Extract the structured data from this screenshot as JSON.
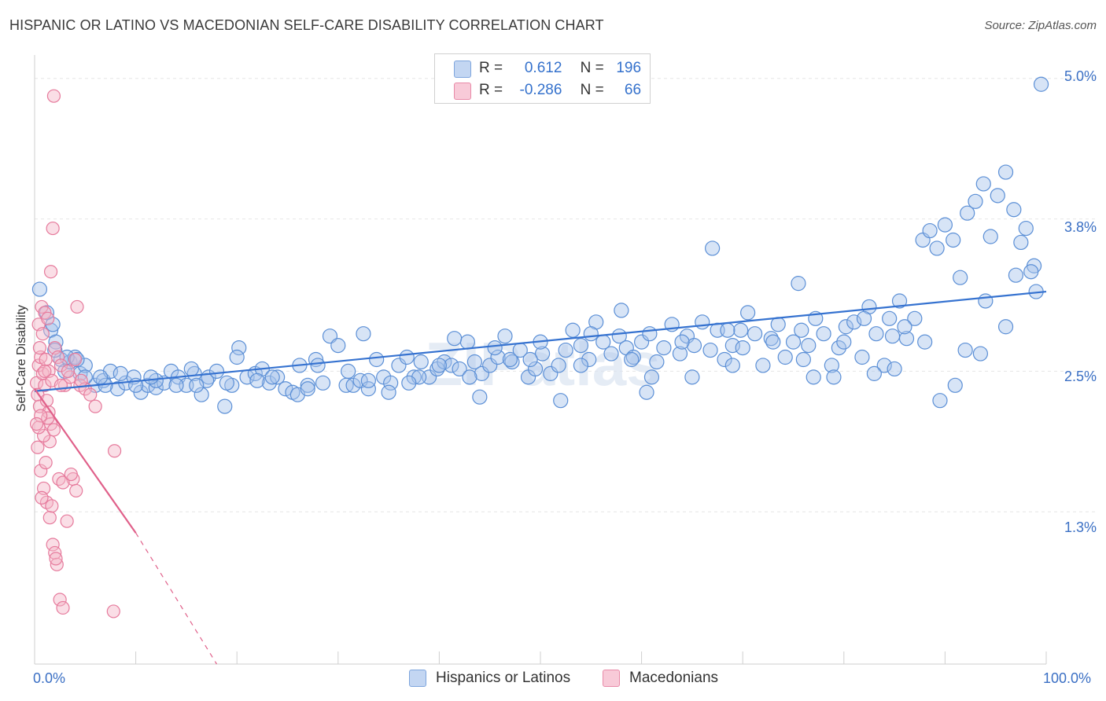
{
  "title": "HISPANIC OR LATINO VS MACEDONIAN SELF-CARE DISABILITY CORRELATION CHART",
  "source": "Source: ZipAtlas.com",
  "watermark": "ZIPatlas",
  "legend": {
    "r_label": "R =",
    "n_label": "N =",
    "rows": [
      {
        "r": "0.612",
        "n": "196",
        "color": "#a7c4ec"
      },
      {
        "r": "-0.286",
        "n": "66",
        "color": "#f4b6c8"
      }
    ]
  },
  "bottom_legend": {
    "items": [
      {
        "label": "Hispanics or Latinos",
        "color": "#a7c4ec"
      },
      {
        "label": "Macedonians",
        "color": "#f4b6c8"
      }
    ]
  },
  "colors": {
    "blue_fill": "#a7c4ec",
    "blue_stroke": "#5b8fd6",
    "blue_line": "#3572d0",
    "pink_fill": "#f4b6c8",
    "pink_stroke": "#e67a9c",
    "pink_line": "#e0608a",
    "axis_text": "#3a6fc4",
    "grid": "#e6e6e6"
  },
  "chart_data": {
    "type": "scatter",
    "title": "HISPANIC OR LATINO VS MACEDONIAN SELF-CARE DISABILITY CORRELATION CHART",
    "xlabel": "",
    "ylabel": "Self-Care Disability",
    "x_unit": "%",
    "xlim": [
      0,
      100
    ],
    "ylim": [
      0.0,
      5.2
    ],
    "x_tick_labels": [
      "0.0%",
      "100.0%"
    ],
    "y_ticks": [
      1.3,
      2.5,
      3.8,
      5.0
    ],
    "y_tick_labels": [
      "1.3%",
      "2.5%",
      "3.8%",
      "5.0%"
    ],
    "grid": true,
    "legend_position": "top-center",
    "series": [
      {
        "name": "Hispanics or Latinos",
        "r": 0.612,
        "n": 196,
        "trend": {
          "x": [
            0,
            100
          ],
          "y": [
            2.33,
            3.18
          ]
        },
        "points": [
          [
            0.5,
            3.2
          ],
          [
            1.2,
            3.0
          ],
          [
            1.6,
            2.85
          ],
          [
            2.1,
            2.75
          ],
          [
            2.6,
            2.6
          ],
          [
            3.0,
            2.5
          ],
          [
            3.5,
            2.58
          ],
          [
            4.0,
            2.62
          ],
          [
            4.5,
            2.48
          ],
          [
            5.0,
            2.55
          ],
          [
            6.0,
            2.38
          ],
          [
            6.8,
            2.42
          ],
          [
            7.5,
            2.5
          ],
          [
            8.2,
            2.35
          ],
          [
            9.0,
            2.4
          ],
          [
            9.8,
            2.45
          ],
          [
            10.5,
            2.32
          ],
          [
            11.2,
            2.38
          ],
          [
            12.0,
            2.36
          ],
          [
            12.8,
            2.4
          ],
          [
            13.5,
            2.5
          ],
          [
            14.2,
            2.45
          ],
          [
            15.0,
            2.38
          ],
          [
            15.8,
            2.48
          ],
          [
            16.5,
            2.3
          ],
          [
            17.2,
            2.45
          ],
          [
            18.0,
            2.5
          ],
          [
            18.8,
            2.2
          ],
          [
            19.5,
            2.38
          ],
          [
            20.2,
            2.7
          ],
          [
            21.0,
            2.45
          ],
          [
            21.8,
            2.48
          ],
          [
            22.5,
            2.52
          ],
          [
            23.2,
            2.4
          ],
          [
            24.0,
            2.45
          ],
          [
            24.8,
            2.35
          ],
          [
            25.5,
            2.32
          ],
          [
            26.2,
            2.55
          ],
          [
            27.0,
            2.38
          ],
          [
            27.8,
            2.6
          ],
          [
            28.5,
            2.4
          ],
          [
            29.2,
            2.8
          ],
          [
            30.0,
            2.72
          ],
          [
            30.8,
            2.38
          ],
          [
            31.5,
            2.38
          ],
          [
            32.2,
            2.42
          ],
          [
            33.0,
            2.35
          ],
          [
            33.8,
            2.6
          ],
          [
            34.5,
            2.45
          ],
          [
            35.2,
            2.4
          ],
          [
            36.0,
            2.55
          ],
          [
            36.8,
            2.62
          ],
          [
            37.5,
            2.45
          ],
          [
            38.2,
            2.58
          ],
          [
            39.0,
            2.45
          ],
          [
            39.8,
            2.52
          ],
          [
            40.5,
            2.58
          ],
          [
            41.2,
            2.55
          ],
          [
            42.0,
            2.52
          ],
          [
            42.8,
            2.75
          ],
          [
            43.5,
            2.58
          ],
          [
            44.2,
            2.48
          ],
          [
            45.0,
            2.55
          ],
          [
            45.8,
            2.62
          ],
          [
            46.5,
            2.8
          ],
          [
            47.2,
            2.58
          ],
          [
            48.0,
            2.68
          ],
          [
            48.8,
            2.45
          ],
          [
            49.5,
            2.52
          ],
          [
            50.2,
            2.65
          ],
          [
            51.0,
            2.48
          ],
          [
            51.8,
            2.55
          ],
          [
            52.5,
            2.68
          ],
          [
            53.2,
            2.85
          ],
          [
            54.0,
            2.72
          ],
          [
            54.8,
            2.6
          ],
          [
            55.5,
            2.92
          ],
          [
            56.2,
            2.75
          ],
          [
            57.0,
            2.65
          ],
          [
            57.8,
            2.8
          ],
          [
            58.5,
            2.7
          ],
          [
            59.2,
            2.62
          ],
          [
            60.0,
            2.75
          ],
          [
            60.8,
            2.82
          ],
          [
            61.5,
            2.58
          ],
          [
            62.2,
            2.7
          ],
          [
            63.0,
            2.9
          ],
          [
            63.8,
            2.65
          ],
          [
            64.5,
            2.8
          ],
          [
            65.2,
            2.72
          ],
          [
            66.0,
            2.92
          ],
          [
            66.8,
            2.68
          ],
          [
            67.5,
            2.85
          ],
          [
            68.2,
            2.6
          ],
          [
            69.0,
            2.72
          ],
          [
            69.8,
            2.85
          ],
          [
            70.5,
            3.0
          ],
          [
            71.2,
            2.82
          ],
          [
            72.0,
            2.55
          ],
          [
            72.8,
            2.78
          ],
          [
            73.5,
            2.9
          ],
          [
            74.2,
            2.62
          ],
          [
            75.0,
            2.75
          ],
          [
            75.8,
            2.85
          ],
          [
            76.5,
            2.72
          ],
          [
            77.2,
            2.95
          ],
          [
            78.0,
            2.82
          ],
          [
            78.8,
            2.55
          ],
          [
            79.5,
            2.7
          ],
          [
            80.2,
            2.88
          ],
          [
            81.0,
            2.92
          ],
          [
            81.8,
            2.62
          ],
          [
            82.5,
            3.05
          ],
          [
            83.2,
            2.82
          ],
          [
            84.0,
            2.55
          ],
          [
            84.8,
            2.8
          ],
          [
            85.5,
            3.1
          ],
          [
            86.2,
            2.78
          ],
          [
            87.0,
            2.95
          ],
          [
            87.8,
            3.62
          ],
          [
            88.5,
            3.7
          ],
          [
            89.2,
            3.55
          ],
          [
            90.0,
            3.75
          ],
          [
            90.8,
            3.62
          ],
          [
            91.5,
            3.3
          ],
          [
            92.2,
            3.85
          ],
          [
            93.0,
            3.95
          ],
          [
            93.8,
            4.1
          ],
          [
            94.5,
            3.65
          ],
          [
            95.2,
            4.0
          ],
          [
            96.0,
            4.2
          ],
          [
            96.8,
            3.88
          ],
          [
            97.5,
            3.6
          ],
          [
            98.0,
            3.72
          ],
          [
            98.8,
            3.4
          ],
          [
            99.5,
            4.95
          ],
          [
            14.0,
            2.38
          ],
          [
            17.0,
            2.42
          ],
          [
            26.0,
            2.3
          ],
          [
            35.0,
            2.32
          ],
          [
            44.0,
            2.28
          ],
          [
            52.0,
            2.25
          ],
          [
            61.0,
            2.45
          ],
          [
            69.0,
            2.55
          ],
          [
            77.0,
            2.45
          ],
          [
            85.0,
            2.52
          ],
          [
            92.0,
            2.68
          ],
          [
            96.0,
            2.88
          ],
          [
            99.0,
            3.18
          ],
          [
            91.0,
            2.38
          ],
          [
            86.0,
            2.88
          ],
          [
            73.0,
            2.75
          ],
          [
            64.0,
            2.75
          ],
          [
            55.0,
            2.82
          ],
          [
            47.0,
            2.6
          ],
          [
            40.0,
            2.55
          ],
          [
            31.0,
            2.5
          ],
          [
            22.0,
            2.42
          ],
          [
            12.0,
            2.42
          ],
          [
            5.0,
            2.45
          ],
          [
            2.0,
            2.68
          ],
          [
            3.2,
            2.62
          ],
          [
            7.0,
            2.38
          ],
          [
            10.0,
            2.38
          ],
          [
            16.0,
            2.38
          ],
          [
            20.0,
            2.62
          ],
          [
            28.0,
            2.55
          ],
          [
            33.0,
            2.42
          ],
          [
            38.0,
            2.45
          ],
          [
            43.0,
            2.45
          ],
          [
            49.0,
            2.6
          ],
          [
            54.0,
            2.55
          ],
          [
            59.0,
            2.6
          ],
          [
            65.0,
            2.45
          ],
          [
            70.0,
            2.7
          ],
          [
            76.0,
            2.6
          ],
          [
            80.0,
            2.75
          ],
          [
            83.0,
            2.48
          ],
          [
            88.0,
            2.75
          ],
          [
            94.0,
            3.1
          ],
          [
            97.0,
            3.32
          ],
          [
            98.5,
            3.35
          ],
          [
            89.5,
            2.25
          ],
          [
            93.5,
            2.65
          ],
          [
            82.0,
            2.95
          ],
          [
            75.5,
            3.25
          ],
          [
            67.0,
            3.55
          ],
          [
            58.0,
            3.02
          ],
          [
            50.0,
            2.75
          ],
          [
            45.5,
            2.7
          ],
          [
            41.5,
            2.78
          ],
          [
            37.0,
            2.4
          ],
          [
            32.5,
            2.82
          ],
          [
            27.0,
            2.35
          ],
          [
            23.5,
            2.45
          ],
          [
            19.0,
            2.4
          ],
          [
            15.5,
            2.52
          ],
          [
            11.5,
            2.45
          ],
          [
            8.5,
            2.48
          ],
          [
            6.5,
            2.45
          ],
          [
            4.2,
            2.6
          ],
          [
            1.8,
            2.9
          ],
          [
            60.5,
            2.32
          ],
          [
            68.5,
            2.85
          ],
          [
            79.0,
            2.45
          ],
          [
            84.5,
            2.95
          ]
        ]
      },
      {
        "name": "Macedonians",
        "r": -0.286,
        "n": 66,
        "trend": {
          "x": [
            0,
            10,
            18
          ],
          "y": [
            2.35,
            1.12,
            0.0
          ]
        },
        "points": [
          [
            0.2,
            2.4
          ],
          [
            0.3,
            2.3
          ],
          [
            0.4,
            2.55
          ],
          [
            0.5,
            2.2
          ],
          [
            0.6,
            2.62
          ],
          [
            0.8,
            2.48
          ],
          [
            1.0,
            2.38
          ],
          [
            1.2,
            2.25
          ],
          [
            1.4,
            2.15
          ],
          [
            1.6,
            2.05
          ],
          [
            0.3,
            1.85
          ],
          [
            0.6,
            1.65
          ],
          [
            0.9,
            1.5
          ],
          [
            1.2,
            1.38
          ],
          [
            1.5,
            1.25
          ],
          [
            1.8,
            1.02
          ],
          [
            2.0,
            0.95
          ],
          [
            2.2,
            0.85
          ],
          [
            2.5,
            0.55
          ],
          [
            2.8,
            0.48
          ],
          [
            0.4,
            2.9
          ],
          [
            0.7,
            3.05
          ],
          [
            1.0,
            3.0
          ],
          [
            1.3,
            2.95
          ],
          [
            1.6,
            3.35
          ],
          [
            0.5,
            2.7
          ],
          [
            0.8,
            2.82
          ],
          [
            1.1,
            2.6
          ],
          [
            1.4,
            2.5
          ],
          [
            1.7,
            2.42
          ],
          [
            2.0,
            2.7
          ],
          [
            2.3,
            2.62
          ],
          [
            2.6,
            2.55
          ],
          [
            3.0,
            2.38
          ],
          [
            3.5,
            2.45
          ],
          [
            4.0,
            2.6
          ],
          [
            4.5,
            2.38
          ],
          [
            5.0,
            2.35
          ],
          [
            5.5,
            2.3
          ],
          [
            6.0,
            2.2
          ],
          [
            1.9,
            4.85
          ],
          [
            1.8,
            3.72
          ],
          [
            4.2,
            3.05
          ],
          [
            3.8,
            1.58
          ],
          [
            4.1,
            1.48
          ],
          [
            7.9,
            1.82
          ],
          [
            7.8,
            0.45
          ],
          [
            1.5,
            1.9
          ],
          [
            1.3,
            2.1
          ],
          [
            0.9,
            1.95
          ],
          [
            2.4,
            1.58
          ],
          [
            2.8,
            1.55
          ],
          [
            3.2,
            1.22
          ],
          [
            0.4,
            2.02
          ],
          [
            0.6,
            2.12
          ],
          [
            1.1,
            1.72
          ],
          [
            1.7,
            1.35
          ],
          [
            2.1,
            0.9
          ],
          [
            3.6,
            1.62
          ],
          [
            1.0,
            2.5
          ],
          [
            0.2,
            2.05
          ],
          [
            0.7,
            1.42
          ],
          [
            1.9,
            2.0
          ],
          [
            2.6,
            2.38
          ],
          [
            4.6,
            2.42
          ],
          [
            3.3,
            2.5
          ]
        ]
      }
    ]
  }
}
